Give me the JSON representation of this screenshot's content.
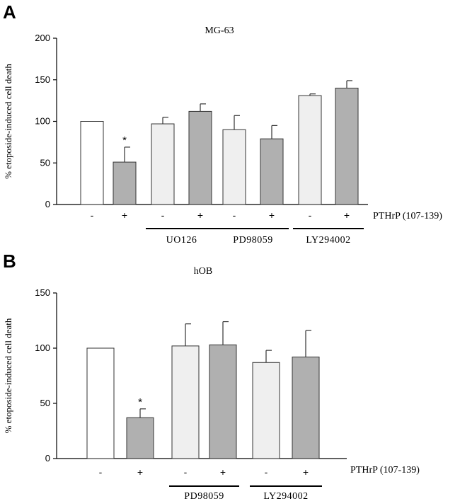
{
  "chart_data": [
    {
      "type": "bar",
      "panel": "A",
      "title": "MG-63",
      "ylabel": "% etoposide-induced cell death",
      "ylim": [
        0,
        200
      ],
      "yticks": [
        0,
        50,
        100,
        150,
        200
      ],
      "treatment_label": "PTHrP (107-139)",
      "categories": [
        "-",
        "+",
        "-",
        "+",
        "-",
        "+",
        "-",
        "+"
      ],
      "values": [
        100,
        51,
        97,
        112,
        90,
        79,
        131,
        140
      ],
      "errors": [
        0,
        18,
        8,
        9,
        17,
        16,
        2,
        9
      ],
      "bar_colors": [
        "#ffffff",
        "#b0b0b0",
        "#efefef",
        "#b0b0b0",
        "#efefef",
        "#b0b0b0",
        "#efefef",
        "#b0b0b0"
      ],
      "significance": [
        "",
        "*",
        "",
        "",
        "",
        "",
        "",
        ""
      ],
      "groups": [
        {
          "label": "UO126",
          "bars": [
            2,
            3
          ]
        },
        {
          "label": "PD98059",
          "bars": [
            4,
            5
          ]
        },
        {
          "label": "LY294002",
          "bars": [
            6,
            7
          ]
        }
      ]
    },
    {
      "type": "bar",
      "panel": "B",
      "title": "hOB",
      "ylabel": "% etoposide-induced cell death",
      "ylim": [
        0,
        150
      ],
      "yticks": [
        0,
        50,
        100,
        150
      ],
      "treatment_label": "PTHrP (107-139)",
      "categories": [
        "-",
        "+",
        "-",
        "+",
        "-",
        "+"
      ],
      "values": [
        100,
        37,
        102,
        103,
        87,
        92
      ],
      "errors": [
        0,
        8,
        20,
        21,
        11,
        24
      ],
      "bar_colors": [
        "#ffffff",
        "#b0b0b0",
        "#efefef",
        "#b0b0b0",
        "#efefef",
        "#b0b0b0"
      ],
      "significance": [
        "",
        "*",
        "",
        "",
        "",
        ""
      ],
      "groups": [
        {
          "label": "PD98059",
          "bars": [
            2,
            3
          ]
        },
        {
          "label": "LY294002",
          "bars": [
            4,
            5
          ]
        }
      ]
    }
  ]
}
